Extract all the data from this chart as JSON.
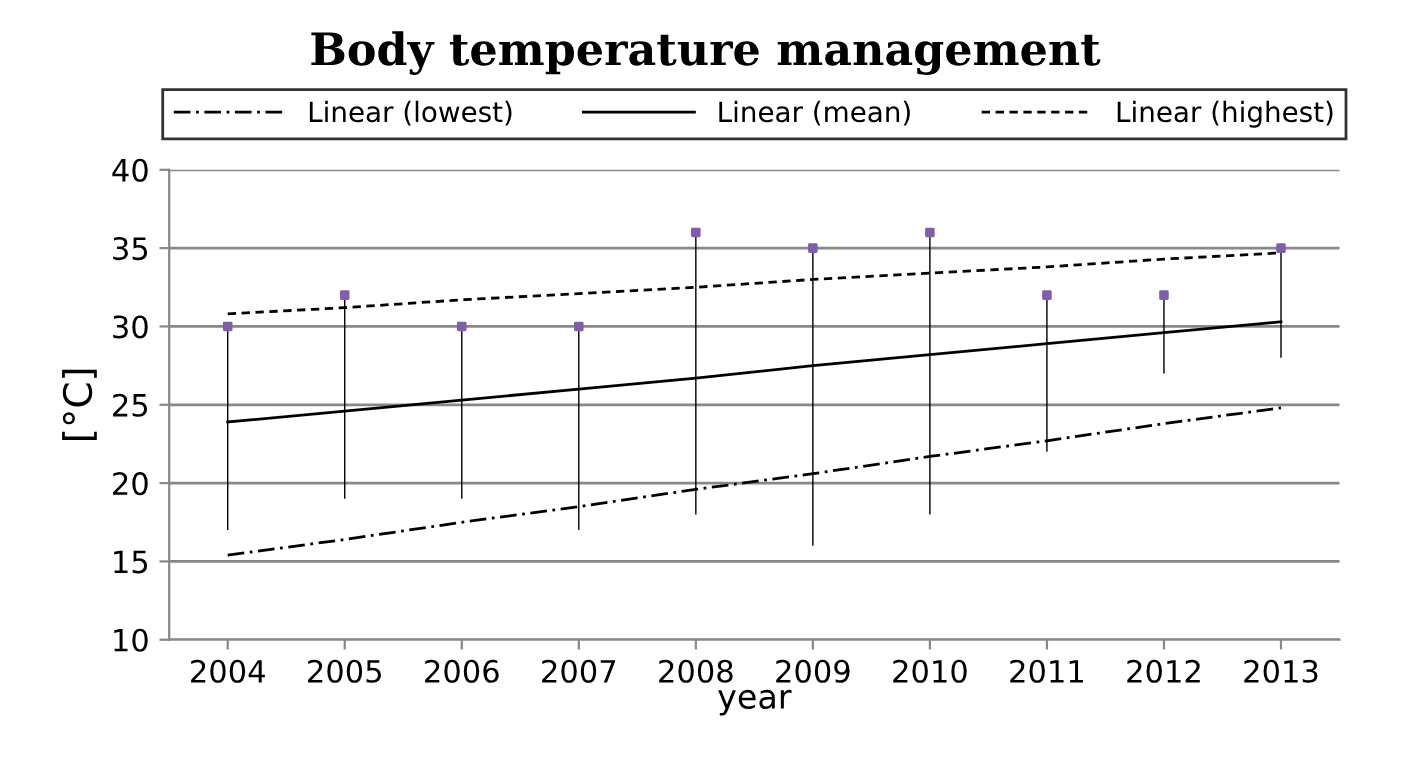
{
  "chart_data": {
    "type": "bar",
    "title": "Body temperature management",
    "xlabel": "year",
    "ylabel": "[°C]",
    "categories": [
      "2004",
      "2005",
      "2006",
      "2007",
      "2008",
      "2009",
      "2010",
      "2011",
      "2012",
      "2013"
    ],
    "series": [
      {
        "color": "#000000",
        "base": [
          17,
          19,
          19,
          17,
          18,
          16,
          18,
          22,
          27,
          28
        ],
        "values": [
          13,
          13,
          11,
          13,
          18,
          19,
          18,
          10,
          5,
          7
        ]
      },
      {
        "type": "scatter",
        "color": "#7f5fa8",
        "marker": "square",
        "values": [
          30,
          32,
          30,
          30,
          36,
          35,
          36,
          32,
          32,
          35
        ]
      },
      {
        "type": "line",
        "name": "Linear (lowest)",
        "color": "#000000",
        "line_style": "dashdot",
        "values": [
          15.4,
          16.4,
          17.5,
          18.5,
          19.6,
          20.6,
          21.7,
          22.7,
          23.8,
          24.8
        ]
      },
      {
        "type": "line",
        "name": "Linear (mean)",
        "color": "#000000",
        "line_style": "solid",
        "values": [
          23.9,
          24.6,
          25.3,
          26.0,
          26.7,
          27.5,
          28.2,
          28.9,
          29.6,
          30.3
        ]
      },
      {
        "type": "line",
        "name": "Linear (highest)",
        "color": "#000000",
        "line_style": "dashed",
        "values": [
          30.8,
          31.2,
          31.7,
          32.1,
          32.5,
          33.0,
          33.4,
          33.8,
          34.3,
          34.7
        ]
      }
    ],
    "ylim": [
      10,
      40
    ],
    "yticks": [
      10,
      15,
      20,
      25,
      30,
      35,
      40
    ],
    "grid": "y",
    "legend": "top"
  }
}
